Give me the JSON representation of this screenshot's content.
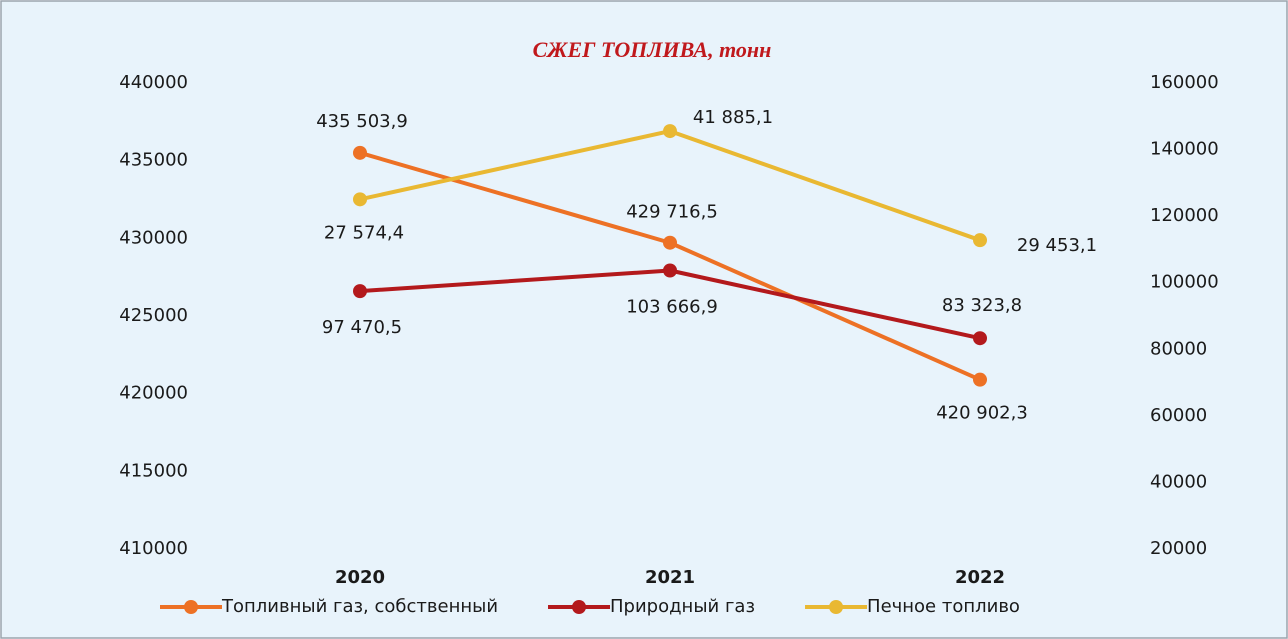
{
  "chart_data": {
    "type": "line",
    "title": "СЖЕГ ТОПЛИВА, тонн",
    "categories": [
      "2020",
      "2021",
      "2022"
    ],
    "series": [
      {
        "name": "Топливный газ, собственный",
        "color": "#ed7125",
        "axis": "y",
        "values": [
          435503.9,
          429716.5,
          420902.3
        ],
        "value_labels": [
          "435 503,9",
          "429 716,5",
          "420 902,3"
        ]
      },
      {
        "name": "Природный газ",
        "color": "#b3191c",
        "axis": "y2",
        "stacked": true,
        "values": [
          97470.5,
          103666.9,
          83323.8
        ],
        "value_labels": [
          "97 470,5",
          "103 666,9",
          "83 323,8"
        ]
      },
      {
        "name": "Печное топливо",
        "color": "#e9b832",
        "axis": "y2",
        "stacked": true,
        "values": [
          27574.4,
          41885.1,
          29453.1
        ],
        "value_labels": [
          "27 574,4",
          "41 885,1",
          "29 453,1"
        ]
      }
    ],
    "ylim": [
      410000,
      440000
    ],
    "yticks": [
      410000,
      415000,
      420000,
      425000,
      430000,
      435000,
      440000
    ],
    "y2lim": [
      20000,
      160000
    ],
    "y2ticks": [
      20000,
      40000,
      60000,
      80000,
      100000,
      120000,
      140000,
      160000
    ],
    "grid": false,
    "legend": "bottom"
  }
}
